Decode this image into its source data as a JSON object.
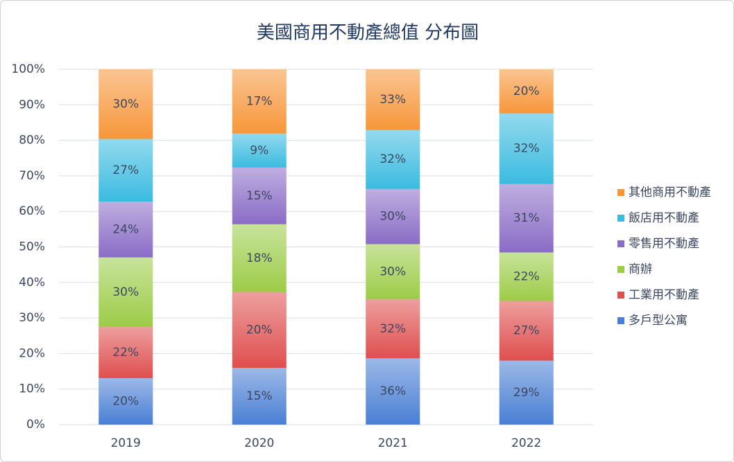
{
  "chart_data": {
    "type": "stacked_percent_bar",
    "title": "美國商用不動產總值 分布圖",
    "categories": [
      "2019",
      "2020",
      "2021",
      "2022"
    ],
    "series": [
      {
        "name": "多戶型公寓",
        "color": "#4a7fd4",
        "values": [
          20,
          15,
          36,
          29
        ],
        "value_labels": [
          "20%",
          "15%",
          "36%",
          "29%"
        ]
      },
      {
        "name": "工業用不動產",
        "color": "#df4f4f",
        "values": [
          22,
          20,
          32,
          27
        ],
        "value_labels": [
          "22%",
          "20%",
          "32%",
          "27%"
        ]
      },
      {
        "name": "商辦",
        "color": "#9ccc48",
        "values": [
          30,
          18,
          30,
          22
        ],
        "value_labels": [
          "30%",
          "18%",
          "30%",
          "22%"
        ]
      },
      {
        "name": "零售用不動產",
        "color": "#8a6cc6",
        "values": [
          24,
          15,
          30,
          31
        ],
        "value_labels": [
          "24%",
          "15%",
          "30%",
          "31%"
        ]
      },
      {
        "name": "飯店用不動產",
        "color": "#3bbbe0",
        "values": [
          27,
          9,
          32,
          32
        ],
        "value_labels": [
          "27%",
          "9%",
          "32%",
          "32%"
        ]
      },
      {
        "name": "其他商用不動產",
        "color": "#f7963a",
        "values": [
          30,
          17,
          33,
          20
        ],
        "value_labels": [
          "30%",
          "17%",
          "33%",
          "20%"
        ]
      }
    ],
    "ylim": [
      0,
      100
    ],
    "yticks": [
      {
        "value": 0,
        "label": "0%"
      },
      {
        "value": 10,
        "label": "10%"
      },
      {
        "value": 20,
        "label": "20%"
      },
      {
        "value": 30,
        "label": "30%"
      },
      {
        "value": 40,
        "label": "40%"
      },
      {
        "value": 50,
        "label": "50%"
      },
      {
        "value": 60,
        "label": "60%"
      },
      {
        "value": 70,
        "label": "70%"
      },
      {
        "value": 80,
        "label": "80%"
      },
      {
        "value": 90,
        "label": "90%"
      },
      {
        "value": 100,
        "label": "100%"
      }
    ],
    "grid": true,
    "legend": "right"
  }
}
